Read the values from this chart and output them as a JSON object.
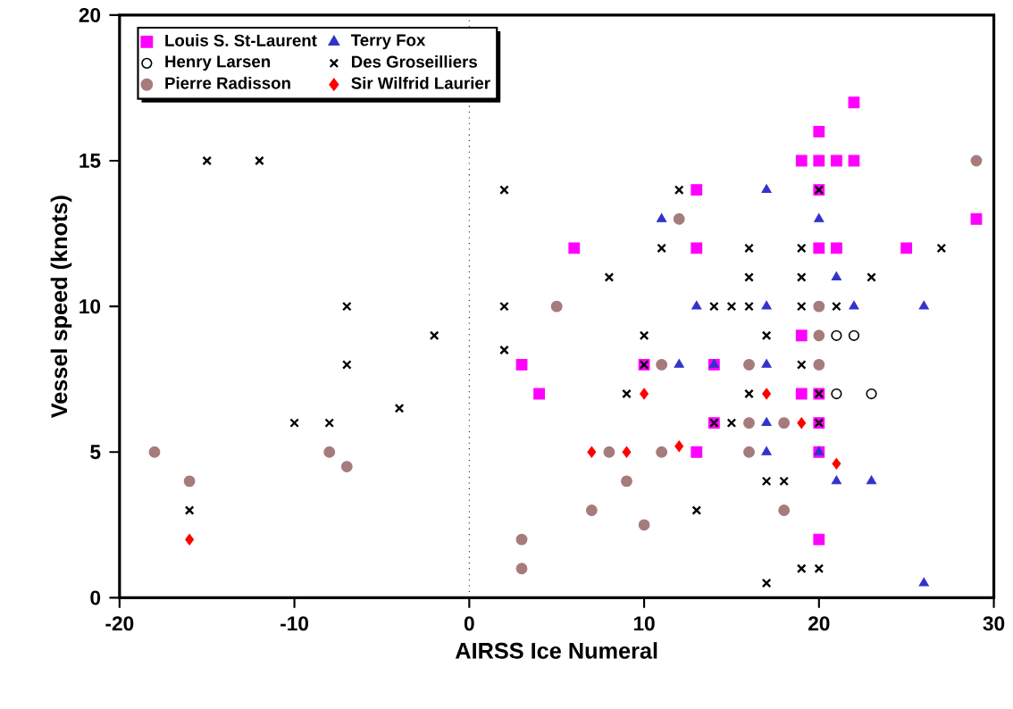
{
  "chart_data": {
    "type": "scatter",
    "xlabel": "AIRSS Ice Numeral",
    "ylabel": "Vessel speed (knots)",
    "xlim": [
      -20,
      30
    ],
    "xticks": [
      -20,
      -10,
      0,
      10,
      20,
      30
    ],
    "ylim": [
      0,
      20
    ],
    "yticks": [
      0,
      5,
      10,
      15,
      20
    ],
    "grid": false,
    "legend": "top left",
    "ref_lines": [
      {
        "axis": "x",
        "value": 0,
        "line_style": "dotted",
        "color": "#000000"
      }
    ],
    "series": [
      {
        "name": "Louis S. St-Laurent",
        "color": "#ff00ff",
        "marker": "square",
        "x": [
          13,
          13,
          6,
          3,
          10,
          14,
          4,
          14,
          13,
          22,
          20,
          19,
          20,
          21,
          22,
          20,
          20,
          29,
          21,
          25,
          19,
          20,
          19,
          20,
          20,
          20
        ],
        "values": [
          14,
          12,
          12,
          8,
          8,
          8,
          7,
          6,
          5,
          17,
          16,
          15,
          15,
          15,
          15,
          14,
          12,
          13,
          12,
          12,
          9,
          7,
          7,
          6,
          5,
          2
        ]
      },
      {
        "name": "Terry Fox",
        "color": "#3333cc",
        "marker": "triangle",
        "x": [
          11,
          12,
          13,
          14,
          17,
          20,
          21,
          17,
          22,
          26,
          17,
          17,
          17,
          20,
          21,
          23,
          26
        ],
        "values": [
          13,
          8,
          10,
          8,
          14,
          13,
          11,
          10,
          10,
          10,
          8,
          6,
          5,
          5,
          4,
          4,
          0.5
        ]
      },
      {
        "name": "Henry Larsen",
        "color": "#000000",
        "marker": "open circle",
        "x": [
          21,
          22,
          21,
          23
        ],
        "values": [
          9,
          9,
          7,
          7
        ]
      },
      {
        "name": "Des Groseilliers",
        "color": "#000000",
        "marker": "cross",
        "x": [
          -15,
          -12,
          -7,
          -2,
          -7,
          -4,
          -10,
          -8,
          -16,
          2,
          12,
          11,
          8,
          2,
          14,
          15,
          10,
          2,
          10,
          9,
          14,
          15,
          13,
          16,
          19,
          27,
          16,
          19,
          23,
          16,
          19,
          21,
          17,
          19,
          16,
          20,
          20,
          17,
          18,
          19,
          20,
          17,
          20
        ],
        "values": [
          15,
          15,
          10,
          9,
          8,
          6.5,
          6,
          6,
          3,
          14,
          14,
          12,
          11,
          10,
          10,
          10,
          9,
          8.5,
          8,
          7,
          6,
          6,
          3,
          12,
          12,
          12,
          11,
          11,
          11,
          10,
          10,
          10,
          9,
          8,
          7,
          7,
          6,
          4,
          4,
          1,
          1,
          0.5,
          14
        ]
      },
      {
        "name": "Pierre Radisson",
        "color": "#a67b7b",
        "marker": "circle",
        "x": [
          -18,
          -8,
          -7,
          -16,
          12,
          5,
          11,
          8,
          11,
          9,
          7,
          10,
          3,
          3,
          29,
          20,
          20,
          16,
          20,
          16,
          18,
          16,
          18
        ],
        "values": [
          5,
          5,
          4.5,
          4,
          13,
          10,
          8,
          5,
          5,
          4,
          3,
          2.5,
          2,
          1,
          15,
          10,
          9,
          8,
          8,
          6,
          6,
          5,
          3
        ]
      },
      {
        "name": "Sir Wilfrid Laurier",
        "color": "#ff0000",
        "marker": "diamond",
        "x": [
          -16,
          7,
          9,
          10,
          12,
          17,
          19,
          21
        ],
        "values": [
          2,
          5,
          5,
          7,
          5.2,
          7,
          6,
          4.6
        ]
      }
    ]
  }
}
